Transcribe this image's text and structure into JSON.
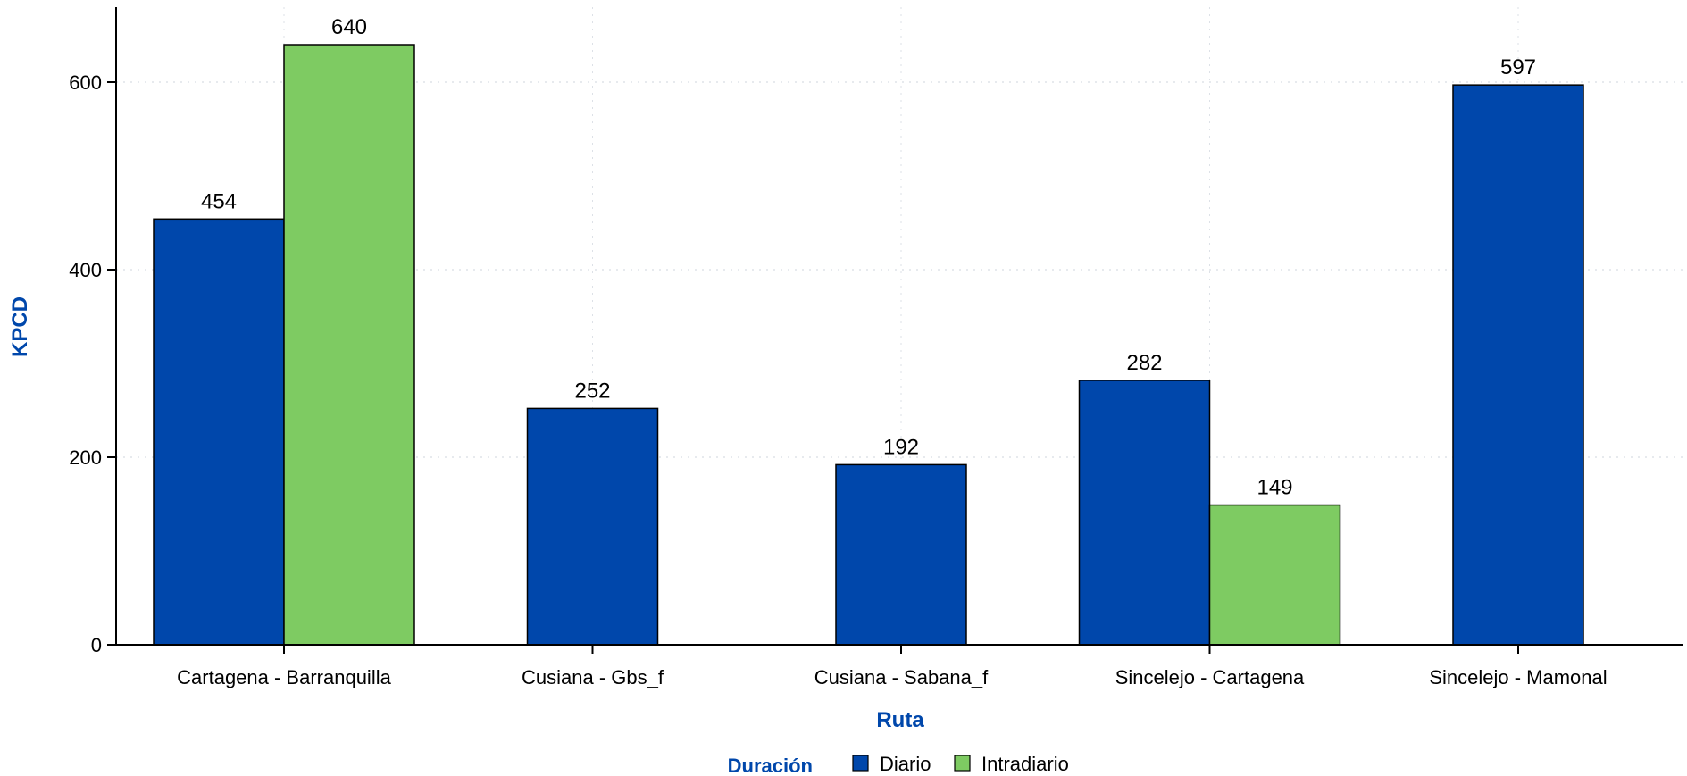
{
  "chart_data": {
    "type": "bar",
    "categories": [
      "Cartagena - Barranquilla",
      "Cusiana - Gbs_f",
      "Cusiana - Sabana_f",
      "Sincelejo - Cartagena",
      "Sincelejo - Mamonal"
    ],
    "series": [
      {
        "name": "Diario",
        "values": [
          454,
          252,
          192,
          282,
          597
        ],
        "color": "#0047AB"
      },
      {
        "name": "Intradiario",
        "values": [
          640,
          null,
          null,
          149,
          null
        ],
        "color": "#7ECB62"
      }
    ],
    "xlabel": "Ruta",
    "ylabel": "KPCD",
    "ylim": [
      0,
      680
    ],
    "yticks": [
      0,
      200,
      400,
      600
    ],
    "grid": true,
    "legend": {
      "title": "Duración",
      "placement": "bottom-center"
    },
    "axis_title_color": "#0047AB"
  }
}
